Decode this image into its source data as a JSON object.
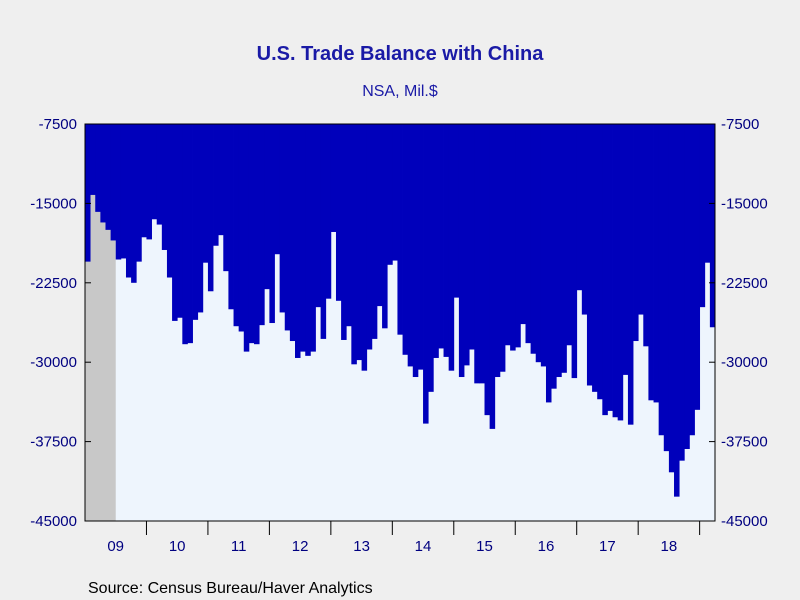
{
  "chart_data": {
    "type": "bar",
    "title": "U.S. Trade Balance with China",
    "subtitle": "NSA, Mil.$",
    "source": "Source:  Census Bureau/Haver Analytics",
    "ylim": [
      -45000,
      -7500
    ],
    "yticks": [
      -7500,
      -15000,
      -22500,
      -30000,
      -37500,
      -45000
    ],
    "ytick_labels": [
      "-7500",
      "-15000",
      "-22500",
      "-30000",
      "-37500",
      "-45000"
    ],
    "year_labels": [
      "09",
      "10",
      "11",
      "12",
      "13",
      "14",
      "15",
      "16",
      "17",
      "18"
    ],
    "x_start": "2009-01",
    "recession_shade_months": 6,
    "grid": false,
    "legend": "none",
    "colors": {
      "bar": "#0000bb",
      "plot_background": "#eef5fd",
      "recession": "#c8c8c8",
      "axis_text": "#000080",
      "title": "#1a1aa6"
    },
    "values": [
      -20500,
      -14200,
      -15800,
      -16800,
      -17500,
      -18500,
      -20300,
      -20200,
      -22000,
      -22500,
      -20500,
      -18200,
      -18400,
      -16500,
      -17000,
      -19400,
      -22000,
      -26100,
      -25800,
      -28300,
      -28200,
      -26000,
      -25300,
      -20600,
      -23300,
      -19000,
      -18000,
      -21400,
      -25000,
      -26600,
      -27100,
      -29000,
      -28200,
      -28300,
      -26500,
      -23100,
      -26300,
      -19800,
      -25300,
      -27000,
      -28000,
      -29600,
      -29000,
      -29400,
      -29000,
      -24800,
      -27800,
      -24000,
      -17700,
      -24200,
      -27900,
      -26600,
      -30200,
      -29800,
      -30800,
      -28800,
      -27800,
      -24700,
      -26800,
      -20800,
      -20400,
      -27400,
      -29300,
      -30400,
      -31400,
      -30700,
      -35800,
      -32800,
      -29600,
      -28700,
      -29500,
      -30800,
      -23900,
      -31400,
      -30300,
      -28800,
      -32000,
      -32000,
      -35000,
      -36300,
      -31400,
      -30900,
      -28400,
      -28900,
      -28600,
      -26400,
      -28200,
      -29200,
      -30000,
      -30400,
      -33800,
      -32500,
      -31400,
      -31000,
      -28400,
      -31500,
      -23200,
      -25500,
      -32200,
      -32800,
      -33500,
      -35000,
      -34600,
      -35200,
      -35500,
      -31200,
      -35900,
      -28000,
      -25500,
      -28500,
      -33600,
      -33800,
      -36900,
      -38400,
      -40400,
      -42700,
      -39300,
      -38200,
      -36900,
      -34500,
      -24800,
      -20600,
      -26700
    ]
  }
}
